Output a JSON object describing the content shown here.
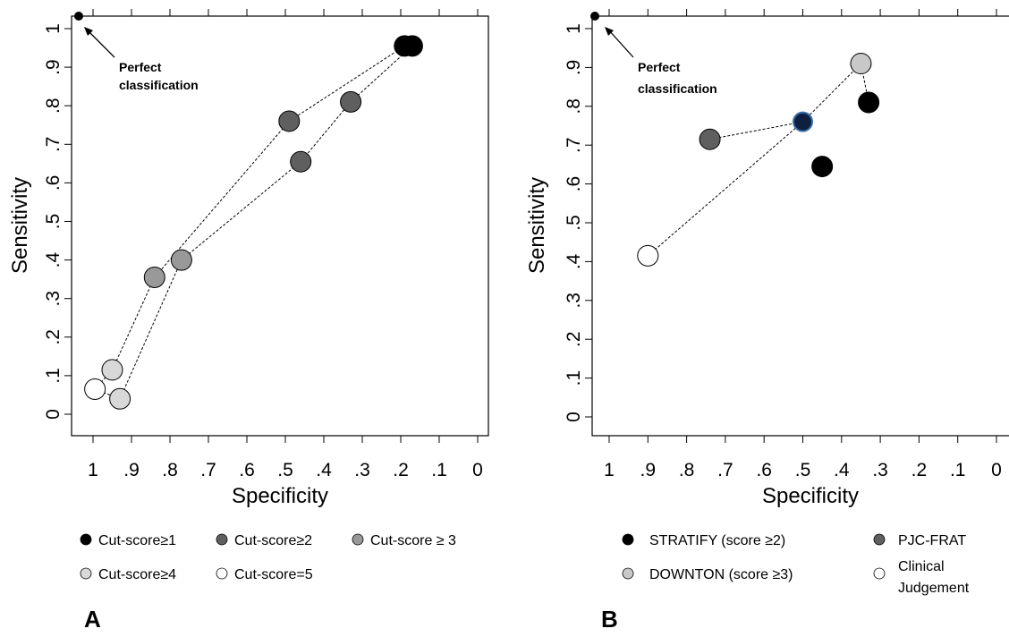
{
  "chart_data": [
    {
      "type": "scatter",
      "panel_label": "A",
      "xlabel": "Specificity",
      "ylabel": "Sensitivity",
      "xlim": [
        1,
        0
      ],
      "ylim": [
        0,
        1
      ],
      "x_ticks": [
        "1",
        ".9",
        ".8",
        ".7",
        ".6",
        ".5",
        ".4",
        ".3",
        ".2",
        ".1",
        "0"
      ],
      "y_ticks": [
        "0",
        ".1",
        ".2",
        ".3",
        ".4",
        ".5",
        ".6",
        ".7",
        ".8",
        ".9",
        "1"
      ],
      "annotation": {
        "text_line1": "Perfect",
        "text_line2": "classification",
        "x": 1.0,
        "y": 1.0
      },
      "series": [
        {
          "name": "Cut-score≥1",
          "color": "#000000",
          "points": [
            [
              0.19,
              0.955
            ],
            [
              0.17,
              0.955
            ]
          ]
        },
        {
          "name": "Cut-score≥2",
          "color": "#5f5f5f",
          "points": [
            [
              0.49,
              0.76
            ],
            [
              0.33,
              0.81
            ],
            [
              0.46,
              0.655
            ]
          ]
        },
        {
          "name": "Cut-score ≥ 3",
          "color": "#999999",
          "points": [
            [
              0.84,
              0.355
            ],
            [
              0.77,
              0.4
            ]
          ]
        },
        {
          "name": "Cut-score≥4",
          "color": "#d8d8d8",
          "points": [
            [
              0.95,
              0.115
            ],
            [
              0.93,
              0.04
            ]
          ]
        },
        {
          "name": "Cut-score=5",
          "color": "#ffffff",
          "points": [
            [
              0.995,
              0.065
            ]
          ]
        }
      ],
      "lines": [
        [
          [
            0.995,
            0.065
          ],
          [
            0.95,
            0.115
          ],
          [
            0.84,
            0.355
          ],
          [
            0.49,
            0.76
          ],
          [
            0.19,
            0.955
          ]
        ],
        [
          [
            0.995,
            0.065
          ],
          [
            0.93,
            0.04
          ],
          [
            0.77,
            0.4
          ],
          [
            0.46,
            0.655
          ],
          [
            0.33,
            0.81
          ],
          [
            0.17,
            0.955
          ]
        ]
      ],
      "legend": [
        [
          "Cut-score≥1",
          "Cut-score≥2",
          "Cut-score ≥ 3"
        ],
        [
          "Cut-score≥4",
          "Cut-score=5"
        ]
      ]
    },
    {
      "type": "scatter",
      "panel_label": "B",
      "xlabel": "Specificity",
      "ylabel": "Sensitivity",
      "xlim": [
        1,
        0
      ],
      "ylim": [
        0,
        1
      ],
      "x_ticks": [
        "1",
        ".9",
        ".8",
        ".7",
        ".6",
        ".5",
        ".4",
        ".3",
        ".2",
        ".1",
        "0"
      ],
      "y_ticks": [
        "0",
        ".1",
        ".2",
        ".3",
        ".4",
        ".5",
        ".6",
        ".7",
        ".8",
        ".9",
        "1"
      ],
      "annotation": {
        "text_line1": "Perfect",
        "text_line2": "classification",
        "x": 1.0,
        "y": 1.0
      },
      "series": [
        {
          "name": "STRATIFY (score ≥2)",
          "color": "#000000",
          "points": [
            [
              0.33,
              0.81
            ],
            [
              0.45,
              0.645
            ]
          ]
        },
        {
          "name": "PJC-FRAT",
          "color": "#5f5f5f",
          "points": [
            [
              0.74,
              0.715
            ]
          ]
        },
        {
          "name": "DOWNTON (score ≥3)",
          "color": "#c8c8c8",
          "points": [
            [
              0.35,
              0.91
            ]
          ]
        },
        {
          "name": "Clinical Judgement",
          "color": "#ffffff",
          "points": [
            [
              0.9,
              0.415
            ]
          ]
        }
      ],
      "special_point": {
        "x": 0.5,
        "y": 0.76,
        "color": "#0d2040",
        "stroke": "#3d6fa8"
      },
      "lines": [
        [
          [
            0.9,
            0.415
          ],
          [
            0.5,
            0.76
          ],
          [
            0.35,
            0.91
          ],
          [
            0.33,
            0.81
          ]
        ],
        [
          [
            0.74,
            0.715
          ],
          [
            0.5,
            0.76
          ]
        ]
      ],
      "legend": [
        [
          "STRATIFY (score ≥2)",
          "PJC-FRAT"
        ],
        [
          "DOWNTON (score ≥3)",
          "Clinical Judgement"
        ]
      ]
    }
  ]
}
